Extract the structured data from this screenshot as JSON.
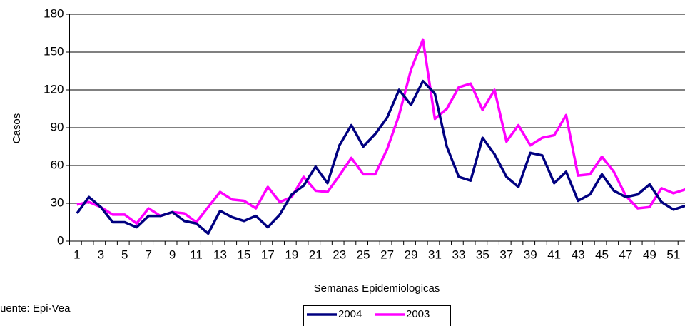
{
  "chart_data": {
    "type": "line",
    "x_label": "Semanas Epidemiologicas",
    "y_label": "Casos",
    "source": "uente: Epi-Vea",
    "categories": [
      1,
      null,
      3,
      null,
      5,
      null,
      7,
      null,
      9,
      null,
      11,
      null,
      13,
      null,
      15,
      null,
      17,
      null,
      19,
      null,
      21,
      null,
      23,
      null,
      25,
      null,
      27,
      null,
      29,
      null,
      31,
      null,
      33,
      null,
      35,
      null,
      37,
      null,
      39,
      null,
      41,
      null,
      43,
      null,
      45,
      null,
      47,
      null,
      49,
      null,
      51,
      null
    ],
    "series": [
      {
        "name": "2004",
        "color": "#000080",
        "values": [
          22,
          35,
          27,
          15,
          15,
          11,
          20,
          20,
          23,
          16,
          14,
          6,
          24,
          19,
          16,
          20,
          11,
          21,
          37,
          44,
          59,
          46,
          76,
          92,
          75,
          85,
          98,
          120,
          108,
          127,
          117,
          75,
          51,
          48,
          82,
          69,
          51,
          43,
          70,
          68,
          46,
          55,
          32,
          37,
          53,
          40,
          35,
          37,
          45,
          31,
          25,
          28
        ]
      },
      {
        "name": "2003",
        "color": "#ff00ff",
        "values": [
          29,
          31,
          27,
          21,
          21,
          14,
          26,
          20,
          23,
          22,
          15,
          27,
          39,
          33,
          32,
          26,
          43,
          31,
          35,
          51,
          40,
          39,
          52,
          66,
          53,
          53,
          73,
          100,
          136,
          160,
          97,
          105,
          122,
          125,
          104,
          120,
          79,
          92,
          76,
          82,
          84,
          100,
          52,
          53,
          67,
          55,
          36,
          26,
          27,
          42,
          38,
          41
        ]
      }
    ],
    "ylim": [
      0,
      180
    ],
    "yticks": [
      0,
      30,
      60,
      90,
      120,
      150,
      180
    ],
    "grid": true,
    "legend": "bottom"
  }
}
